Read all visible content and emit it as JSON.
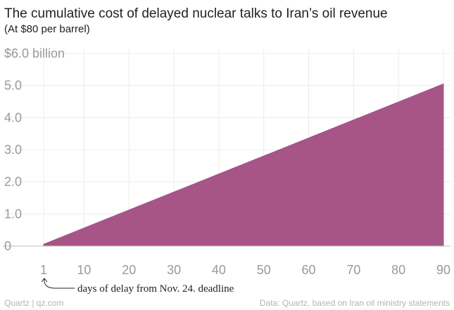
{
  "header": {
    "title": "The cumulative cost of delayed nuclear talks to Iran’s oil revenue",
    "subtitle": "(At $80 per barrel)"
  },
  "footer": {
    "credit": "Quartz | qz.com",
    "source": "Data: Quartz, based on Iran oil ministry statements"
  },
  "colors": {
    "area_fill": "#a65586",
    "grid": "#ececec",
    "axis_text": "#9a9a9a",
    "baseline": "#bdbdbd"
  },
  "chart_data": {
    "type": "area",
    "title": "The cumulative cost of delayed nuclear talks to Iran’s oil revenue",
    "subtitle": "(At $80 per barrel)",
    "xlabel": "days of delay from Nov. 24. deadline",
    "ylabel": "",
    "x": [
      1,
      90
    ],
    "series": [
      {
        "values": [
          0.056,
          5.05
        ]
      }
    ],
    "xlim": [
      1,
      90
    ],
    "ylim": [
      0,
      6.0
    ],
    "x_ticks": [
      1,
      10,
      20,
      30,
      40,
      50,
      60,
      70,
      80,
      90
    ],
    "x_tick_labels": [
      "1",
      "10",
      "20",
      "30",
      "40",
      "50",
      "60",
      "70",
      "80",
      "90"
    ],
    "y_ticks": [
      0,
      1,
      2,
      3,
      4,
      5,
      6
    ],
    "y_tick_labels": [
      "0",
      "1.0",
      "2.0",
      "3.0",
      "4.0",
      "5.0",
      "$6.0 billion"
    ],
    "grid": true,
    "annotation": "days of delay from Nov. 24. deadline"
  }
}
